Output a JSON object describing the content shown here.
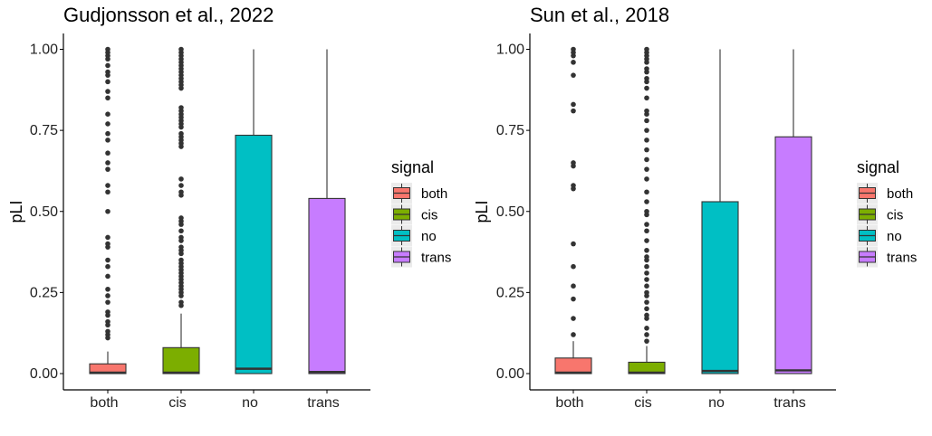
{
  "chart_data": [
    {
      "type": "box",
      "title": "Gudjonsson et al., 2022",
      "xlabel": "",
      "ylabel": "pLI",
      "ylim": [
        -0.05,
        1.05
      ],
      "yticks": [
        0.0,
        0.25,
        0.5,
        0.75,
        1.0
      ],
      "ytick_labels": [
        "0.00",
        "0.25",
        "0.50",
        "0.75",
        "1.00"
      ],
      "categories": [
        "both",
        "cis",
        "no",
        "trans"
      ],
      "boxes": [
        {
          "category": "both",
          "q1": 0.0,
          "median": 0.003,
          "q3": 0.03,
          "whisker_low": 0.0,
          "whisker_high": 0.068,
          "outliers": [
            0.11,
            0.12,
            0.13,
            0.15,
            0.16,
            0.18,
            0.19,
            0.22,
            0.24,
            0.26,
            0.3,
            0.33,
            0.35,
            0.39,
            0.4,
            0.42,
            0.5,
            0.56,
            0.58,
            0.63,
            0.65,
            0.68,
            0.72,
            0.74,
            0.77,
            0.8,
            0.85,
            0.87,
            0.9,
            0.92,
            0.93,
            0.95,
            0.97,
            0.98,
            0.99,
            1.0
          ]
        },
        {
          "category": "cis",
          "q1": 0.0,
          "median": 0.003,
          "q3": 0.08,
          "whisker_low": 0.0,
          "whisker_high": 0.185,
          "outliers": [
            0.21,
            0.22,
            0.24,
            0.25,
            0.26,
            0.27,
            0.28,
            0.29,
            0.3,
            0.31,
            0.32,
            0.33,
            0.34,
            0.35,
            0.37,
            0.38,
            0.39,
            0.41,
            0.42,
            0.44,
            0.46,
            0.47,
            0.48,
            0.55,
            0.56,
            0.58,
            0.6,
            0.7,
            0.71,
            0.72,
            0.73,
            0.74,
            0.76,
            0.77,
            0.78,
            0.79,
            0.8,
            0.81,
            0.82,
            0.88,
            0.89,
            0.9,
            0.91,
            0.92,
            0.93,
            0.94,
            0.95,
            0.96,
            0.97,
            0.98,
            0.99,
            1.0
          ]
        },
        {
          "category": "no",
          "q1": 0.0,
          "median": 0.015,
          "q3": 0.735,
          "whisker_low": 0.0,
          "whisker_high": 1.0,
          "outliers": []
        },
        {
          "category": "trans",
          "q1": 0.0,
          "median": 0.005,
          "q3": 0.54,
          "whisker_low": 0.0,
          "whisker_high": 1.0,
          "outliers": []
        }
      ]
    },
    {
      "type": "box",
      "title": "Sun et al., 2018",
      "xlabel": "",
      "ylabel": "pLI",
      "ylim": [
        -0.05,
        1.05
      ],
      "yticks": [
        0.0,
        0.25,
        0.5,
        0.75,
        1.0
      ],
      "ytick_labels": [
        "0.00",
        "0.25",
        "0.50",
        "0.75",
        "1.00"
      ],
      "categories": [
        "both",
        "cis",
        "no",
        "trans"
      ],
      "boxes": [
        {
          "category": "both",
          "q1": 0.0,
          "median": 0.003,
          "q3": 0.048,
          "whisker_low": 0.0,
          "whisker_high": 0.1,
          "outliers": [
            0.12,
            0.17,
            0.23,
            0.27,
            0.33,
            0.4,
            0.57,
            0.58,
            0.64,
            0.65,
            0.81,
            0.83,
            0.92,
            0.96,
            0.98,
            0.99,
            1.0
          ]
        },
        {
          "category": "cis",
          "q1": 0.0,
          "median": 0.003,
          "q3": 0.035,
          "whisker_low": 0.0,
          "whisker_high": 0.085,
          "outliers": [
            0.1,
            0.12,
            0.14,
            0.17,
            0.18,
            0.2,
            0.22,
            0.24,
            0.25,
            0.27,
            0.29,
            0.31,
            0.33,
            0.35,
            0.36,
            0.38,
            0.41,
            0.44,
            0.46,
            0.49,
            0.5,
            0.53,
            0.56,
            0.6,
            0.63,
            0.66,
            0.69,
            0.72,
            0.75,
            0.78,
            0.8,
            0.81,
            0.85,
            0.88,
            0.9,
            0.91,
            0.93,
            0.94,
            0.96,
            0.97,
            0.98,
            0.99,
            1.0
          ]
        },
        {
          "category": "no",
          "q1": 0.0,
          "median": 0.008,
          "q3": 0.53,
          "whisker_low": 0.0,
          "whisker_high": 1.0,
          "outliers": []
        },
        {
          "category": "trans",
          "q1": 0.0,
          "median": 0.01,
          "q3": 0.73,
          "whisker_low": 0.0,
          "whisker_high": 1.0,
          "outliers": []
        }
      ]
    }
  ],
  "legend": {
    "title": "signal",
    "entries": [
      "both",
      "cis",
      "no",
      "trans"
    ]
  },
  "colors": {
    "both": "#F8766D",
    "cis": "#7CAE00",
    "no": "#00BFC4",
    "trans": "#C77CFF",
    "outline": "#333333",
    "outlier": "#333333",
    "axis": "#000000",
    "legend_key_bg": "#EBEBEB"
  }
}
